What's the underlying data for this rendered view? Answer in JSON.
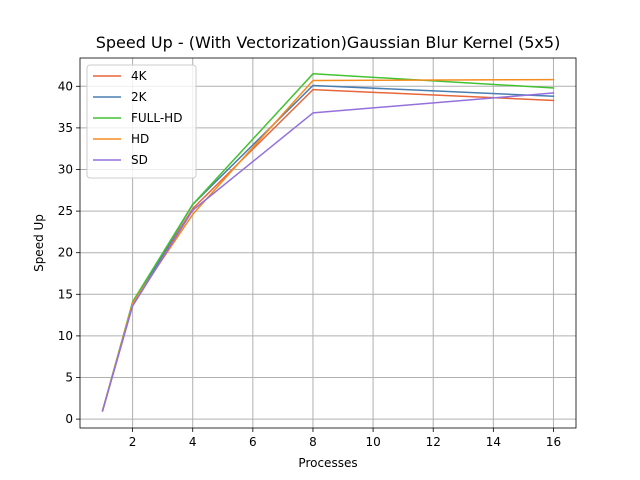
{
  "chart_data": {
    "type": "line",
    "title": "Speed Up - (With Vectorization)Gaussian Blur Kernel (5x5)",
    "xlabel": "Processes",
    "ylabel": "Speed Up",
    "xlim": [
      0.25,
      16.75
    ],
    "ylim": [
      -1.07,
      43.4
    ],
    "xticks": [
      2,
      4,
      6,
      8,
      10,
      12,
      14,
      16
    ],
    "yticks": [
      0,
      5,
      10,
      15,
      20,
      25,
      30,
      35,
      40
    ],
    "grid": true,
    "legend_position": "top-left",
    "x": [
      1,
      2,
      4,
      8,
      16
    ],
    "series": [
      {
        "name": "4K",
        "color": "#e8663a",
        "values": [
          1.0,
          13.8,
          25.3,
          39.6,
          38.3
        ]
      },
      {
        "name": "2K",
        "color": "#4a7eb0",
        "values": [
          1.0,
          13.7,
          25.8,
          40.1,
          38.8
        ]
      },
      {
        "name": "FULL-HD",
        "color": "#44c234",
        "values": [
          1.0,
          14.1,
          25.8,
          41.5,
          39.8
        ]
      },
      {
        "name": "HD",
        "color": "#f58c1e",
        "values": [
          1.0,
          13.9,
          24.6,
          40.7,
          40.8
        ]
      },
      {
        "name": "SD",
        "color": "#9370db",
        "values": [
          1.0,
          13.6,
          25.1,
          36.8,
          39.2
        ]
      }
    ]
  }
}
